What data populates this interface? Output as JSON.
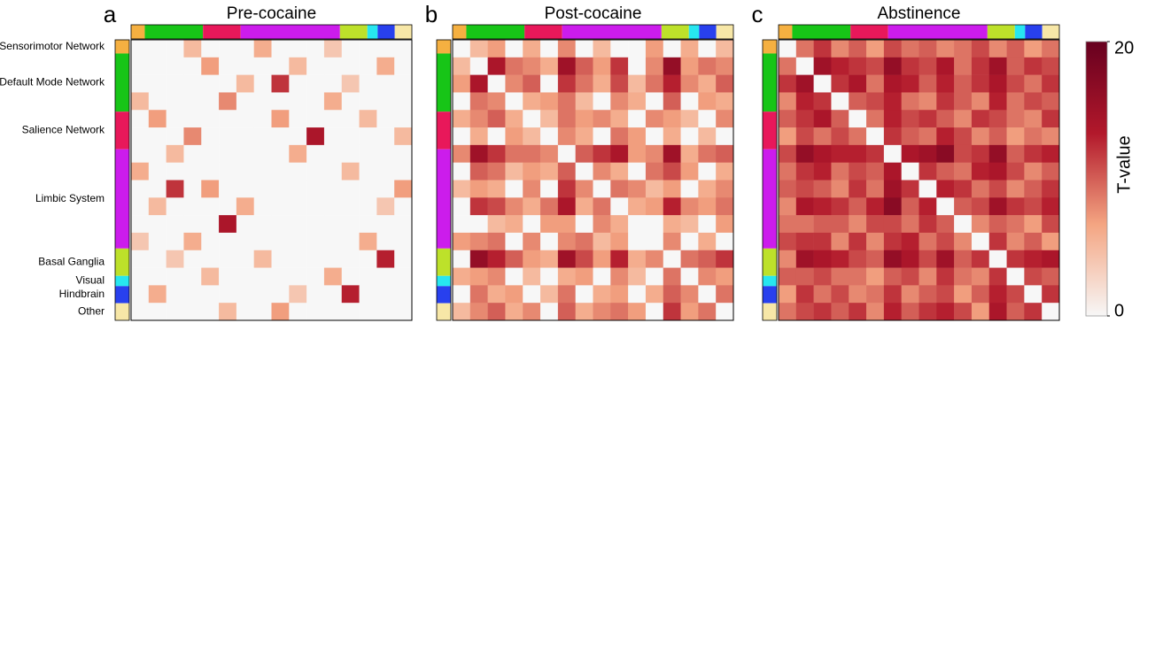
{
  "networks": [
    {
      "name": "Sensorimotor Network",
      "color": "#f5b041",
      "nodes": 4
    },
    {
      "name": "Default Mode Network",
      "color": "#17c517",
      "nodes": 17
    },
    {
      "name": "Salience Network",
      "color": "#e8185a",
      "nodes": 11
    },
    {
      "name": "Limbic System",
      "color": "#cc1cec",
      "nodes": 29
    },
    {
      "name": "Basal Ganglia",
      "color": "#bde12a",
      "nodes": 8
    },
    {
      "name": "Visual",
      "color": "#27e6f0",
      "nodes": 3
    },
    {
      "name": "Hindbrain",
      "color": "#2840ee",
      "nodes": 5
    },
    {
      "name": "Other",
      "color": "#f7e7a7",
      "nodes": 5
    }
  ],
  "colorbar": {
    "label": "T-value",
    "lim": [
      0,
      20
    ],
    "ticks": [
      0,
      20
    ],
    "colormap": [
      "#f7f7f7",
      "#f4a582",
      "#b2182b",
      "#67001f"
    ]
  },
  "chart_data": [
    {
      "type": "heatmap",
      "label": "a",
      "title": "Pre-cocaine",
      "matrix": [
        [
          0,
          0,
          0,
          5,
          0,
          0,
          0,
          6,
          0,
          0,
          0,
          4,
          0,
          0,
          0,
          0
        ],
        [
          0,
          0,
          0,
          0,
          7,
          0,
          0,
          0,
          0,
          5,
          0,
          0,
          0,
          0,
          6,
          0
        ],
        [
          0,
          0,
          0,
          0,
          0,
          0,
          5,
          0,
          12,
          0,
          0,
          0,
          4,
          0,
          0,
          0
        ],
        [
          5,
          0,
          0,
          0,
          0,
          8,
          0,
          0,
          0,
          0,
          0,
          6,
          0,
          0,
          0,
          0
        ],
        [
          0,
          7,
          0,
          0,
          0,
          0,
          0,
          0,
          7,
          0,
          0,
          0,
          0,
          5,
          0,
          0
        ],
        [
          0,
          0,
          0,
          8,
          0,
          0,
          0,
          0,
          0,
          0,
          14,
          0,
          0,
          0,
          0,
          5
        ],
        [
          0,
          0,
          5,
          0,
          0,
          0,
          0,
          0,
          0,
          6,
          0,
          0,
          0,
          0,
          0,
          0
        ],
        [
          6,
          0,
          0,
          0,
          0,
          0,
          0,
          0,
          0,
          0,
          0,
          0,
          5,
          0,
          0,
          0
        ],
        [
          0,
          0,
          12,
          0,
          7,
          0,
          0,
          0,
          0,
          0,
          0,
          0,
          0,
          0,
          0,
          7
        ],
        [
          0,
          5,
          0,
          0,
          0,
          0,
          6,
          0,
          0,
          0,
          0,
          0,
          0,
          0,
          4,
          0
        ],
        [
          0,
          0,
          0,
          0,
          0,
          14,
          0,
          0,
          0,
          0,
          0,
          0,
          0,
          0,
          0,
          0
        ],
        [
          4,
          0,
          0,
          6,
          0,
          0,
          0,
          0,
          0,
          0,
          0,
          0,
          0,
          6,
          0,
          0
        ],
        [
          0,
          0,
          4,
          0,
          0,
          0,
          0,
          5,
          0,
          0,
          0,
          0,
          0,
          0,
          13,
          0
        ],
        [
          0,
          0,
          0,
          0,
          5,
          0,
          0,
          0,
          0,
          0,
          0,
          6,
          0,
          0,
          0,
          0
        ],
        [
          0,
          6,
          0,
          0,
          0,
          0,
          0,
          0,
          0,
          4,
          0,
          0,
          13,
          0,
          0,
          0
        ],
        [
          0,
          0,
          0,
          0,
          0,
          5,
          0,
          0,
          7,
          0,
          0,
          0,
          0,
          0,
          0,
          0
        ]
      ]
    },
    {
      "type": "heatmap",
      "label": "b",
      "title": "Post-cocaine",
      "matrix": [
        [
          0,
          5,
          7,
          0,
          6,
          0,
          8,
          0,
          5,
          0,
          0,
          7,
          0,
          6,
          0,
          5
        ],
        [
          5,
          0,
          14,
          9,
          8,
          6,
          15,
          10,
          7,
          12,
          0,
          8,
          16,
          7,
          9,
          8
        ],
        [
          7,
          14,
          0,
          8,
          10,
          0,
          12,
          9,
          6,
          11,
          5,
          9,
          13,
          8,
          6,
          10
        ],
        [
          0,
          9,
          8,
          0,
          6,
          7,
          9,
          5,
          0,
          8,
          6,
          0,
          10,
          0,
          7,
          6
        ],
        [
          6,
          8,
          10,
          6,
          0,
          5,
          9,
          7,
          8,
          6,
          0,
          8,
          7,
          5,
          0,
          8
        ],
        [
          0,
          6,
          0,
          7,
          5,
          0,
          8,
          6,
          0,
          9,
          7,
          0,
          6,
          0,
          5,
          0
        ],
        [
          8,
          15,
          12,
          9,
          9,
          8,
          0,
          10,
          12,
          14,
          7,
          8,
          15,
          6,
          9,
          10
        ],
        [
          0,
          10,
          9,
          5,
          7,
          6,
          10,
          0,
          8,
          6,
          0,
          9,
          11,
          7,
          0,
          6
        ],
        [
          5,
          7,
          6,
          0,
          8,
          0,
          12,
          8,
          0,
          9,
          8,
          5,
          7,
          0,
          6,
          8
        ],
        [
          0,
          12,
          11,
          8,
          6,
          9,
          14,
          6,
          9,
          0,
          6,
          7,
          13,
          8,
          7,
          9
        ],
        [
          0,
          0,
          5,
          6,
          0,
          7,
          7,
          0,
          8,
          6,
          0,
          0,
          6,
          5,
          0,
          7
        ],
        [
          7,
          8,
          9,
          0,
          8,
          0,
          8,
          9,
          5,
          7,
          0,
          0,
          8,
          0,
          6,
          0
        ],
        [
          0,
          16,
          13,
          10,
          7,
          6,
          15,
          11,
          7,
          13,
          6,
          8,
          0,
          9,
          10,
          12
        ],
        [
          6,
          7,
          8,
          0,
          5,
          0,
          6,
          7,
          0,
          8,
          5,
          0,
          9,
          0,
          8,
          7
        ],
        [
          0,
          9,
          6,
          7,
          0,
          5,
          9,
          0,
          6,
          7,
          0,
          6,
          10,
          8,
          0,
          9
        ],
        [
          5,
          8,
          10,
          6,
          8,
          0,
          10,
          6,
          8,
          9,
          7,
          0,
          12,
          7,
          9,
          0
        ]
      ]
    },
    {
      "type": "heatmap",
      "label": "c",
      "title": "Abstinence",
      "matrix": [
        [
          0,
          9,
          12,
          8,
          10,
          7,
          11,
          9,
          10,
          8,
          9,
          11,
          8,
          10,
          7,
          9
        ],
        [
          9,
          0,
          15,
          13,
          12,
          11,
          16,
          12,
          11,
          14,
          9,
          12,
          15,
          10,
          12,
          11
        ],
        [
          12,
          15,
          0,
          12,
          14,
          9,
          14,
          13,
          10,
          13,
          10,
          12,
          14,
          11,
          9,
          12
        ],
        [
          8,
          13,
          12,
          0,
          10,
          11,
          13,
          9,
          8,
          12,
          10,
          8,
          13,
          9,
          11,
          10
        ],
        [
          10,
          12,
          14,
          10,
          0,
          9,
          13,
          11,
          12,
          10,
          8,
          12,
          11,
          9,
          8,
          12
        ],
        [
          7,
          11,
          9,
          11,
          9,
          0,
          12,
          10,
          9,
          13,
          11,
          8,
          10,
          7,
          9,
          8
        ],
        [
          11,
          16,
          14,
          13,
          13,
          12,
          0,
          14,
          15,
          17,
          11,
          12,
          16,
          10,
          12,
          13
        ],
        [
          9,
          12,
          13,
          9,
          11,
          10,
          14,
          0,
          12,
          10,
          9,
          13,
          14,
          11,
          8,
          10
        ],
        [
          10,
          11,
          10,
          8,
          12,
          9,
          15,
          12,
          0,
          13,
          12,
          9,
          11,
          8,
          10,
          12
        ],
        [
          8,
          14,
          13,
          12,
          10,
          13,
          17,
          10,
          13,
          0,
          10,
          11,
          15,
          12,
          11,
          13
        ],
        [
          9,
          9,
          10,
          10,
          8,
          11,
          11,
          9,
          12,
          10,
          0,
          8,
          10,
          9,
          7,
          11
        ],
        [
          11,
          12,
          12,
          8,
          12,
          8,
          12,
          13,
          9,
          11,
          8,
          0,
          12,
          8,
          10,
          7
        ],
        [
          8,
          15,
          14,
          13,
          11,
          10,
          16,
          14,
          11,
          15,
          10,
          12,
          0,
          12,
          13,
          14
        ],
        [
          10,
          10,
          11,
          9,
          9,
          7,
          10,
          11,
          8,
          12,
          9,
          8,
          12,
          0,
          11,
          10
        ],
        [
          7,
          12,
          9,
          11,
          8,
          9,
          12,
          8,
          10,
          11,
          7,
          10,
          13,
          11,
          0,
          12
        ],
        [
          9,
          11,
          12,
          10,
          12,
          8,
          13,
          10,
          12,
          13,
          11,
          7,
          14,
          10,
          12,
          0
        ]
      ]
    }
  ]
}
